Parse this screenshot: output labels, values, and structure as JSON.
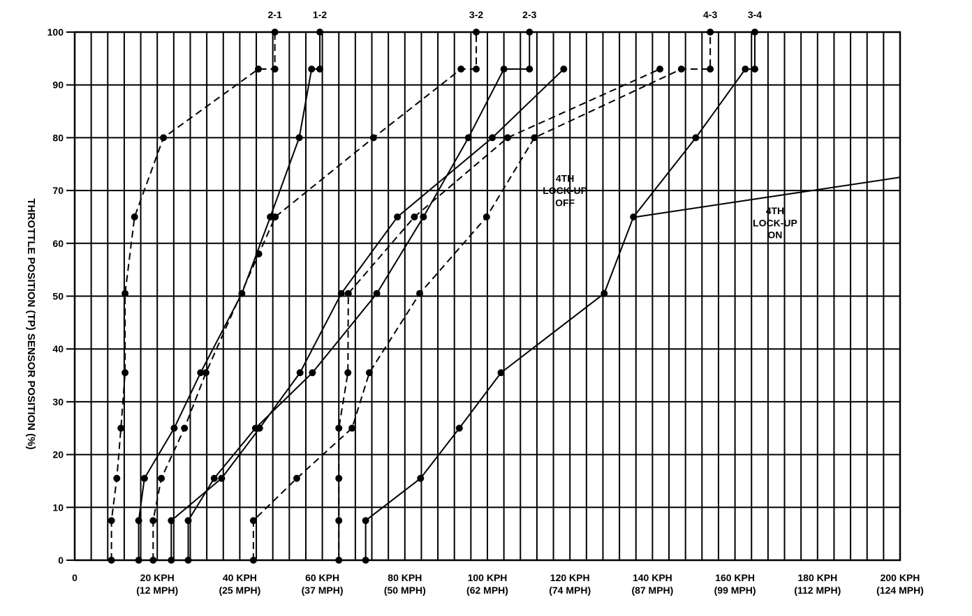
{
  "chart_data": {
    "type": "line",
    "title": "",
    "xlabel": "",
    "ylabel": "THROTTLE POSITION (TP) SENSOR POSITION (%)",
    "xlim": [
      0,
      200
    ],
    "ylim": [
      0,
      100
    ],
    "x_ticks": [
      {
        "value": 0,
        "label": "0"
      },
      {
        "value": 20,
        "label": "20 KPH",
        "sub": "(12 MPH)"
      },
      {
        "value": 40,
        "label": "40 KPH",
        "sub": "(25 MPH)"
      },
      {
        "value": 60,
        "label": "60 KPH",
        "sub": "(37 MPH)"
      },
      {
        "value": 80,
        "label": "80 KPH",
        "sub": "(50 MPH)"
      },
      {
        "value": 100,
        "label": "100 KPH",
        "sub": "(62 MPH)"
      },
      {
        "value": 120,
        "label": "120 KPH",
        "sub": "(74 MPH)"
      },
      {
        "value": 140,
        "label": "140 KPH",
        "sub": "(87 MPH)"
      },
      {
        "value": 160,
        "label": "160 KPH",
        "sub": "(99 MPH)"
      },
      {
        "value": 180,
        "label": "180 KPH",
        "sub": "(112 MPH)"
      },
      {
        "value": 200,
        "label": "200 KPH",
        "sub": "(124 MPH)"
      }
    ],
    "y_ticks": [
      0,
      10,
      20,
      30,
      40,
      50,
      60,
      70,
      80,
      90,
      100
    ],
    "grid": true,
    "vertical_grid_step": 4,
    "series": [
      {
        "name": "2-1",
        "style": "dashed",
        "points": [
          [
            8.9,
            0
          ],
          [
            8.9,
            7.5
          ],
          [
            10.2,
            15.5
          ],
          [
            11.2,
            25
          ],
          [
            12.2,
            35.5
          ],
          [
            12.2,
            50.5
          ],
          [
            14.5,
            65
          ],
          [
            21.5,
            80
          ],
          [
            44.5,
            93
          ],
          [
            48.5,
            93
          ],
          [
            48.5,
            100
          ]
        ]
      },
      {
        "name": "1-2",
        "style": "solid",
        "points": [
          [
            15.5,
            0
          ],
          [
            15.5,
            7.5
          ],
          [
            16.9,
            15.5
          ],
          [
            24.1,
            25
          ],
          [
            30.5,
            35.5
          ],
          [
            40.5,
            50.5
          ],
          [
            47.4,
            65
          ],
          [
            54.4,
            80
          ],
          [
            57.4,
            93
          ],
          [
            59.4,
            93
          ],
          [
            59.4,
            100
          ]
        ]
      },
      {
        "name": "3-2",
        "style": "dashed",
        "points": [
          [
            19,
            0
          ],
          [
            19,
            7.5
          ],
          [
            21,
            15.5
          ],
          [
            26.6,
            25
          ],
          [
            31.8,
            35.5
          ],
          [
            44.6,
            58
          ],
          [
            48.6,
            65
          ],
          [
            72.4,
            80
          ],
          [
            93.6,
            93
          ],
          [
            97.3,
            93
          ],
          [
            97.3,
            100
          ]
        ]
      },
      {
        "name": "2-3",
        "style": "solid",
        "points": [
          [
            27.5,
            0
          ],
          [
            27.5,
            7.5
          ],
          [
            33.8,
            15.5
          ],
          [
            43.8,
            25
          ],
          [
            57.6,
            35.5
          ],
          [
            73.2,
            50.5
          ],
          [
            84.5,
            65
          ],
          [
            95.4,
            80
          ],
          [
            104,
            93
          ],
          [
            110.2,
            93
          ],
          [
            110.2,
            100
          ]
        ]
      },
      {
        "name": "4-3",
        "style": "dashed",
        "points": [
          [
            43.3,
            0
          ],
          [
            43.3,
            7.5
          ],
          [
            53.8,
            15.5
          ],
          [
            67.2,
            25
          ],
          [
            71.4,
            35.5
          ],
          [
            83.6,
            50.5
          ],
          [
            99.8,
            65
          ],
          [
            111.4,
            80
          ],
          [
            147,
            93
          ],
          [
            154,
            93
          ],
          [
            154,
            100
          ]
        ]
      },
      {
        "name": "3-4",
        "style": "solid",
        "points": [
          [
            70.5,
            0
          ],
          [
            70.5,
            7.5
          ],
          [
            83.8,
            15.5
          ],
          [
            93.2,
            25
          ],
          [
            103.3,
            35.5
          ],
          [
            128.3,
            50.5
          ],
          [
            135.4,
            65
          ],
          [
            150.5,
            80
          ],
          [
            162.5,
            93
          ],
          [
            164.8,
            93
          ],
          [
            164.8,
            100
          ]
        ]
      },
      {
        "name": "4TH LOCK-UP OFF",
        "style": "dashed",
        "points": [
          [
            64,
            0
          ],
          [
            64,
            7.5
          ],
          [
            64,
            15.5
          ],
          [
            64,
            25
          ],
          [
            66.2,
            35.5
          ],
          [
            66.3,
            50.5
          ],
          [
            82.3,
            65
          ],
          [
            104.9,
            80
          ],
          [
            141.8,
            93
          ]
        ]
      },
      {
        "name": "4TH LOCK-UP ON",
        "style": "solid",
        "points": [
          [
            23.4,
            0
          ],
          [
            23.4,
            7.5
          ],
          [
            35.6,
            15.5
          ],
          [
            44.8,
            25
          ],
          [
            54.6,
            35.5
          ],
          [
            64.6,
            50.5
          ],
          [
            78.2,
            65
          ],
          [
            101.2,
            80
          ],
          [
            118.5,
            93
          ]
        ]
      },
      {
        "name": "",
        "style": "solid",
        "points": [
          [
            136,
            65
          ],
          [
            200,
            72.5
          ]
        ]
      }
    ],
    "annotations": [
      {
        "text": "2-1",
        "x": 48.5,
        "y": 103.3
      },
      {
        "text": "1-2",
        "x": 59.4,
        "y": 103.3
      },
      {
        "text": "3-2",
        "x": 97.3,
        "y": 103.3
      },
      {
        "text": "2-3",
        "x": 110.2,
        "y": 103.3
      },
      {
        "text": "4-3",
        "x": 154,
        "y": 103.3
      },
      {
        "text": "3-4",
        "x": 164.8,
        "y": 103.3
      },
      {
        "text": "4TH",
        "x": 118.8,
        "y": 72.3
      },
      {
        "text": "LOCK-UP",
        "x": 118.8,
        "y": 70.0
      },
      {
        "text": "OFF",
        "x": 118.8,
        "y": 67.7
      },
      {
        "text": "4TH",
        "x": 169.7,
        "y": 66.2
      },
      {
        "text": "LOCK-UP",
        "x": 169.7,
        "y": 63.9
      },
      {
        "text": "ON",
        "x": 169.7,
        "y": 61.6
      }
    ]
  }
}
